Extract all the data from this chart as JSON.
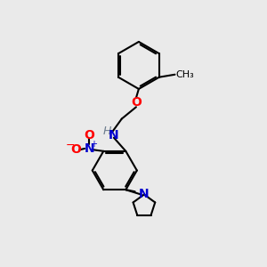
{
  "bg_color": "#eaeaea",
  "bond_color": "#000000",
  "bond_width": 1.5,
  "atom_colors": {
    "N": "#0000cd",
    "O": "#ff0000",
    "H": "#708090",
    "C": "#000000"
  },
  "font_size_atom": 10,
  "font_size_charge": 7,
  "fig_size": [
    3.0,
    3.0
  ],
  "dpi": 100
}
